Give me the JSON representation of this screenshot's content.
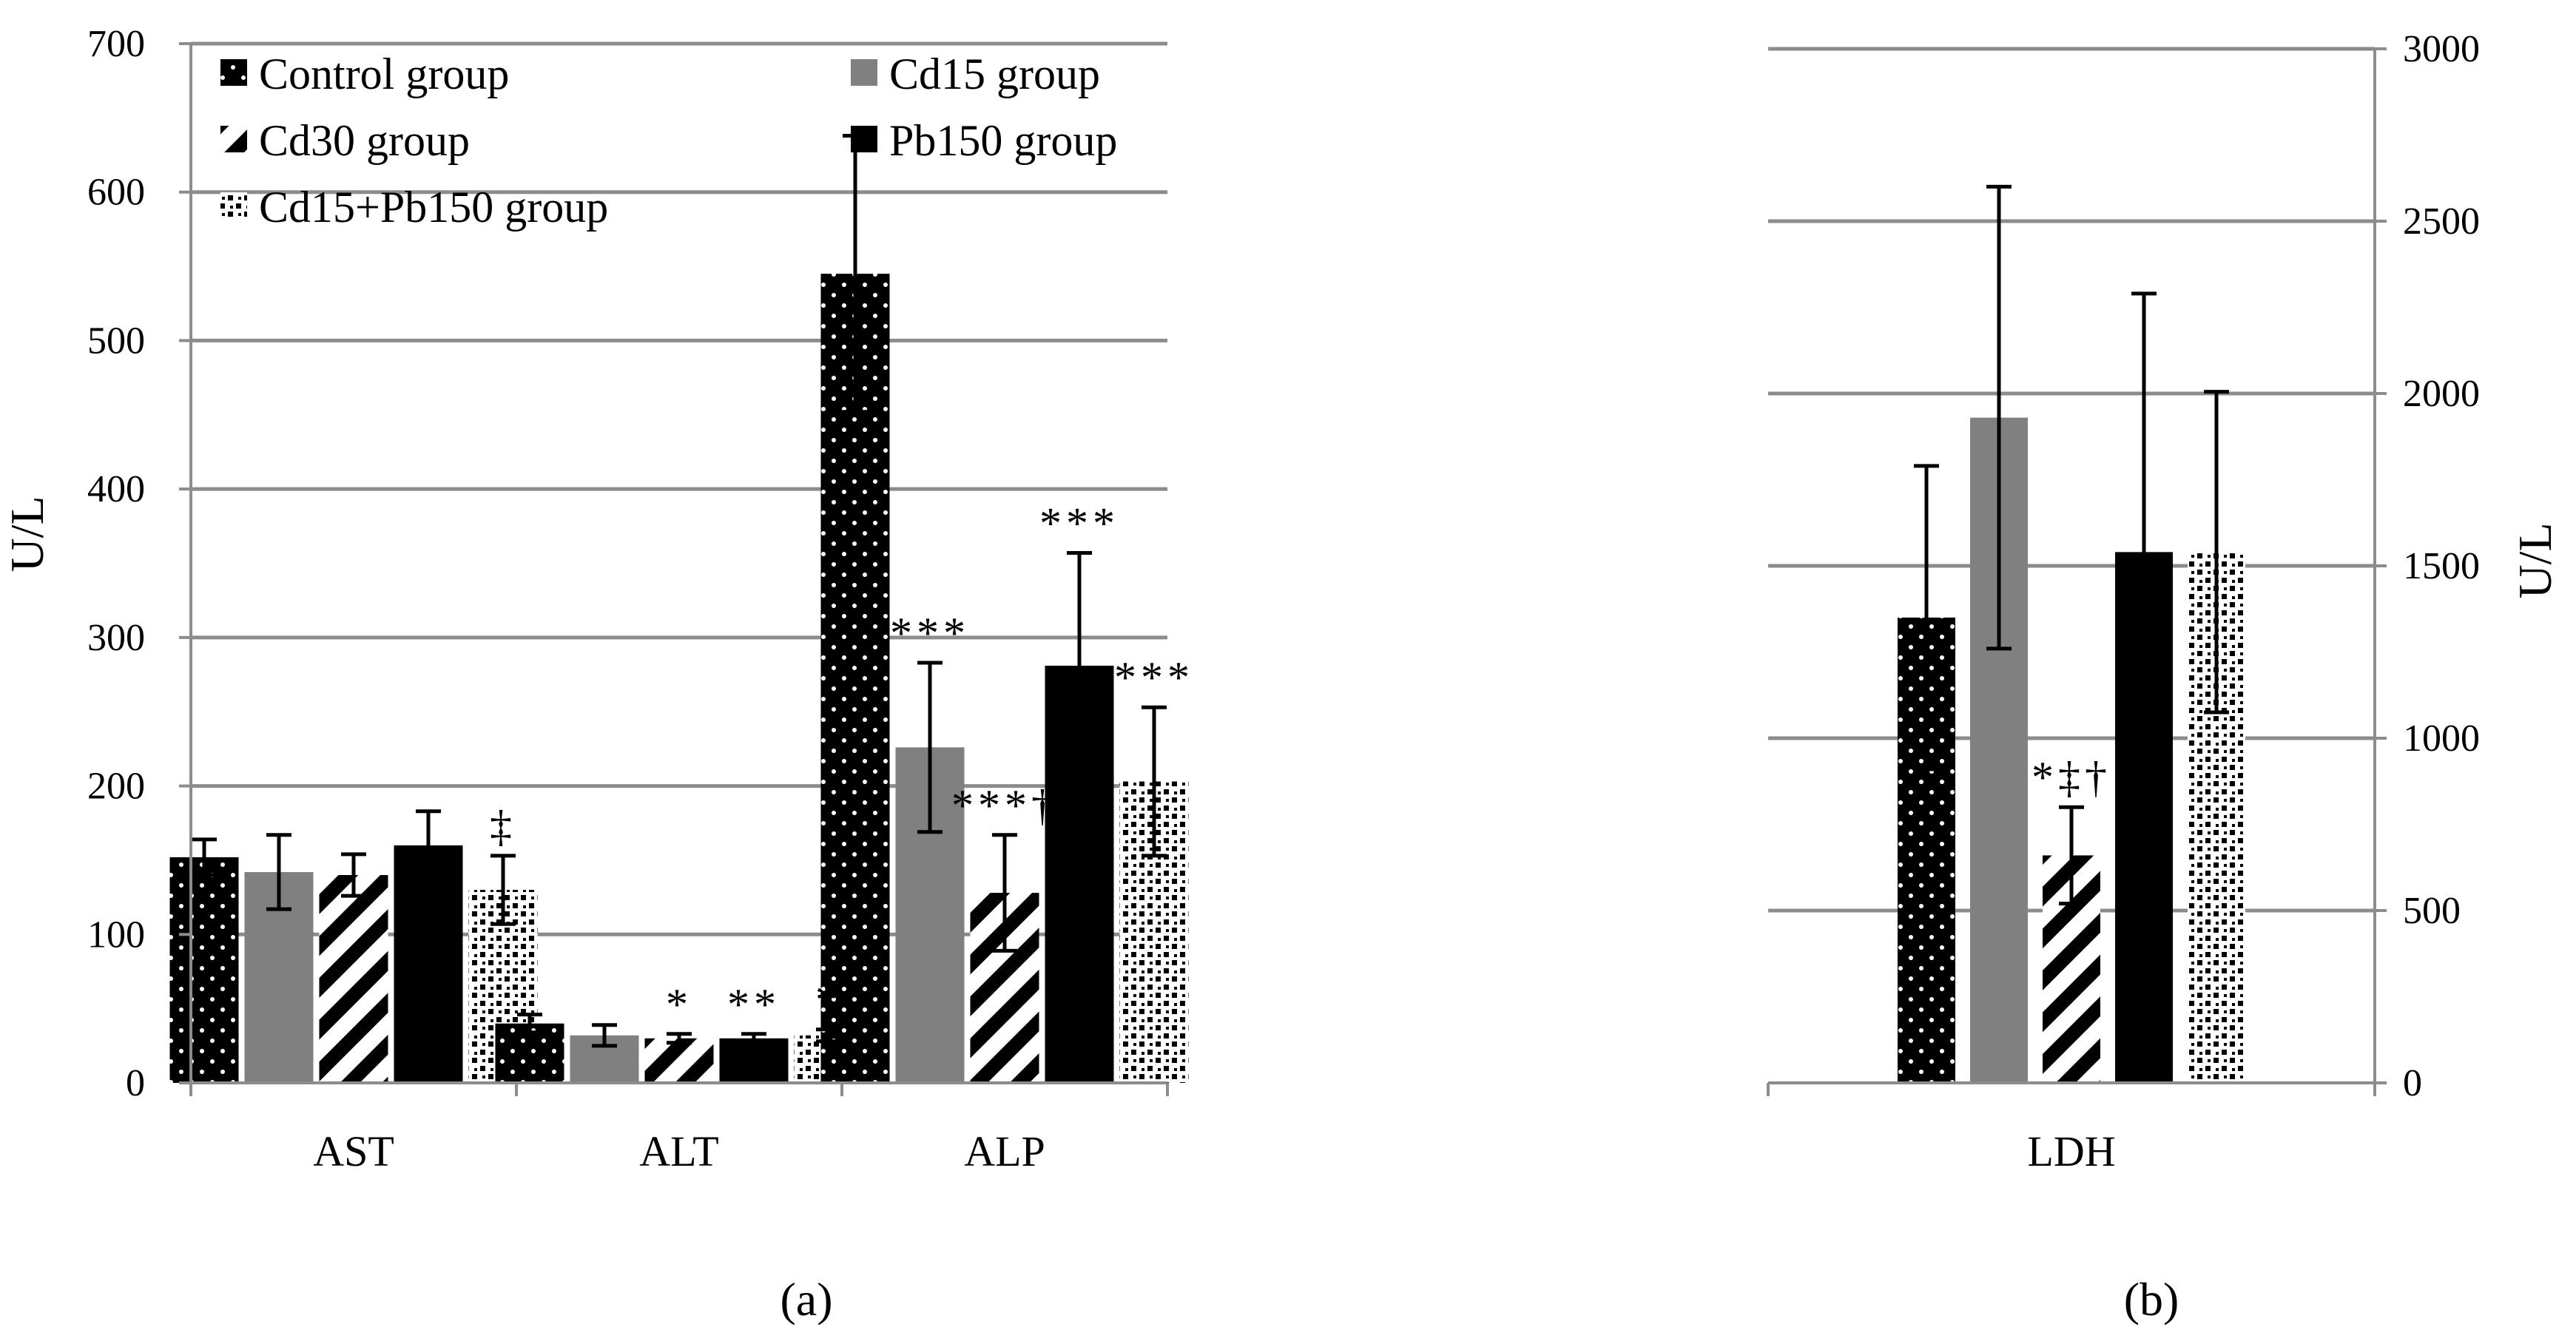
{
  "chart_data": [
    {
      "panel": "a",
      "panel_label": "(a)",
      "type": "bar",
      "ylabel": "U/L",
      "ylim": [
        0,
        700
      ],
      "yticks": [
        0,
        100,
        200,
        300,
        400,
        500,
        600,
        700
      ],
      "categories": [
        "AST",
        "ALT",
        "ALP"
      ],
      "grid": true,
      "legend_position": "top-left",
      "series": [
        {
          "name": "Control group",
          "pattern": "dots",
          "values": [
            152,
            40,
            545
          ],
          "errors": [
            12,
            6,
            93
          ],
          "labels": [
            "",
            "",
            ""
          ]
        },
        {
          "name": "Cd15 group",
          "pattern": "gray",
          "values": [
            142,
            32,
            226
          ],
          "errors": [
            25,
            7,
            57
          ],
          "labels": [
            "",
            "",
            "***"
          ]
        },
        {
          "name": "Cd30 group",
          "pattern": "diagonal",
          "values": [
            140,
            30,
            128
          ],
          "errors": [
            14,
            3,
            39
          ],
          "labels": [
            "",
            "*",
            "***†"
          ]
        },
        {
          "name": "Pb150 group",
          "pattern": "black",
          "values": [
            160,
            30,
            281
          ],
          "errors": [
            23,
            3,
            76
          ],
          "labels": [
            "",
            "**",
            "***"
          ]
        },
        {
          "name": "Cd15+Pb150 group",
          "pattern": "checker",
          "values": [
            130,
            32,
            203
          ],
          "errors": [
            23,
            4,
            50
          ],
          "labels": [
            "‡",
            "*",
            "***"
          ]
        }
      ]
    },
    {
      "panel": "b",
      "panel_label": "(b)",
      "type": "bar",
      "ylabel": "U/L",
      "ylim": [
        0,
        3000
      ],
      "yticks": [
        0,
        500,
        1000,
        1500,
        2000,
        2500,
        3000
      ],
      "categories": [
        "LDH"
      ],
      "grid": true,
      "series": [
        {
          "name": "Control group",
          "pattern": "dots",
          "values": [
            1350
          ],
          "errors": [
            440
          ],
          "labels": [
            ""
          ]
        },
        {
          "name": "Cd15 group",
          "pattern": "gray",
          "values": [
            1930
          ],
          "errors": [
            670
          ],
          "labels": [
            ""
          ]
        },
        {
          "name": "Cd30 group",
          "pattern": "diagonal",
          "values": [
            660
          ],
          "errors": [
            140
          ],
          "labels": [
            "*‡†"
          ]
        },
        {
          "name": "Pb150 group",
          "pattern": "black",
          "values": [
            1540
          ],
          "errors": [
            750
          ],
          "labels": [
            ""
          ]
        },
        {
          "name": "Cd15+Pb150 group",
          "pattern": "checker",
          "values": [
            1540
          ],
          "errors": [
            465
          ],
          "labels": [
            ""
          ]
        }
      ]
    }
  ]
}
